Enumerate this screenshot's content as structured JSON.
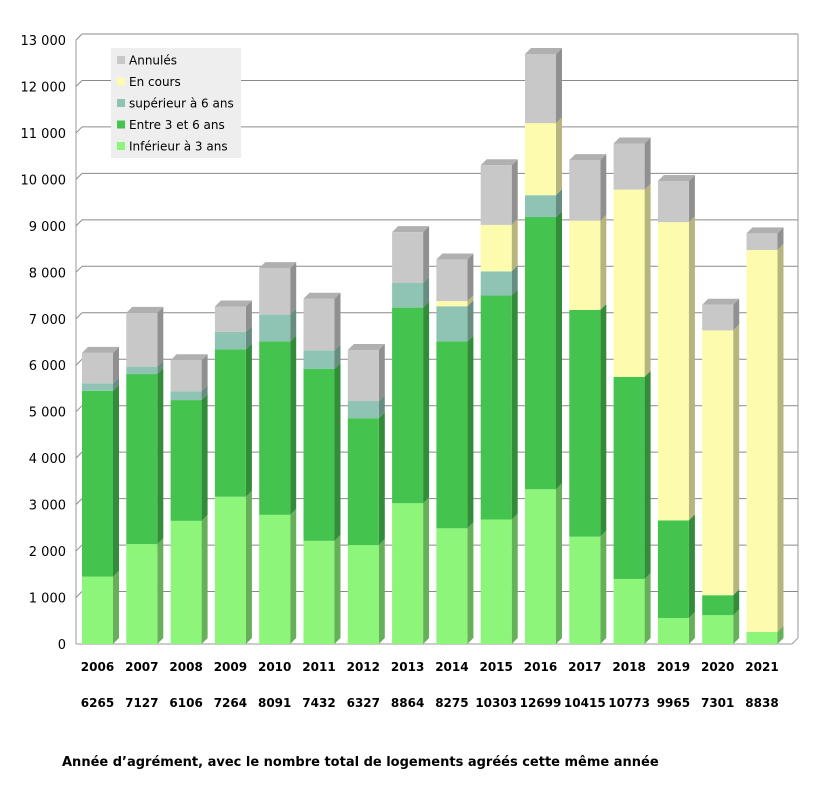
{
  "chart_data": {
    "type": "bar",
    "stacked": true,
    "categories": [
      "2006",
      "2007",
      "2008",
      "2009",
      "2010",
      "2011",
      "2012",
      "2013",
      "2014",
      "2015",
      "2016",
      "2017",
      "2018",
      "2019",
      "2020",
      "2021"
    ],
    "totals": [
      "6265",
      "7127",
      "6106",
      "7264",
      "8091",
      "7432",
      "6327",
      "8864",
      "8275",
      "10303",
      "12699",
      "10415",
      "10773",
      "9965",
      "7301",
      "8838"
    ],
    "series": [
      {
        "name": "Inférieur à 3 ans",
        "color": "#8cf57a",
        "values": [
          1450,
          2150,
          2650,
          3170,
          2780,
          2220,
          2130,
          3030,
          2490,
          2680,
          3330,
          2310,
          1400,
          560,
          620,
          260
        ]
      },
      {
        "name": "Entre 3 et 6 ans",
        "color": "#45c34f",
        "values": [
          4000,
          3660,
          2600,
          3170,
          3730,
          3700,
          2730,
          4210,
          4020,
          4820,
          5860,
          4880,
          4350,
          2100,
          430,
          0
        ]
      },
      {
        "name": "supérieur à 6 ans",
        "color": "#8fc4b4",
        "values": [
          160,
          160,
          190,
          380,
          580,
          400,
          370,
          530,
          760,
          520,
          470,
          0,
          0,
          0,
          0,
          0
        ]
      },
      {
        "name": "En cours",
        "color": "#fdfbad",
        "values": [
          0,
          0,
          0,
          0,
          0,
          0,
          0,
          0,
          110,
          1000,
          1550,
          1920,
          4030,
          6420,
          5700,
          8220
        ]
      },
      {
        "name": "Annulés",
        "color": "#c8c8c8",
        "values": [
          655,
          1157,
          666,
          544,
          1001,
          1112,
          1097,
          1094,
          895,
          1283,
          1489,
          1305,
          993,
          885,
          551,
          358
        ]
      }
    ],
    "ylim": [
      0,
      13000
    ],
    "yticks": [
      "0",
      "1 000",
      "2 000",
      "3 000",
      "4 000",
      "5 000",
      "6 000",
      "7 000",
      "8 000",
      "9 000",
      "10 000",
      "11 000",
      "12 000",
      "13 000"
    ],
    "grid": true,
    "legend_position": "top-left",
    "legend_order": [
      "Annulés",
      "En cours",
      "supérieur à 6 ans",
      "Entre 3 et 6 ans",
      "Inférieur à 3 ans"
    ],
    "xlabel": "Année d’agrément, avec le nombre total de logements agréés cette même année"
  }
}
